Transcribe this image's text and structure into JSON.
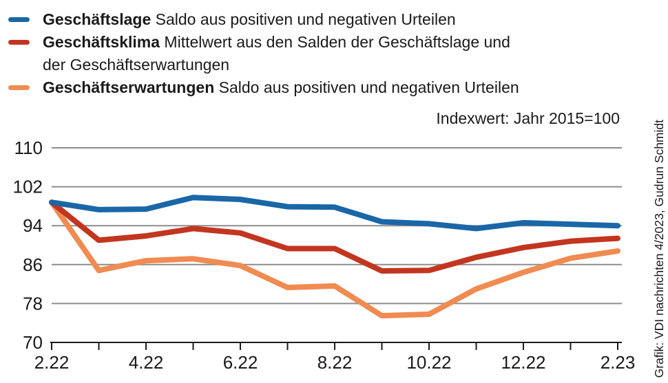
{
  "legend": {
    "items": [
      {
        "term": "Geschäftslage",
        "desc": "Saldo aus positiven und negativen Urteilen",
        "color": "#1a67a8"
      },
      {
        "term": "Geschäftsklima",
        "desc": "Mittelwert aus den Salden der Geschäftslage und",
        "desc_line2": "der Geschäftserwartungen",
        "color": "#c23620"
      },
      {
        "term": "Geschäftserwartungen",
        "desc": "Saldo aus positiven und negativen Urteilen",
        "color": "#f08b52"
      }
    ]
  },
  "annotation": "Indexwert: Jahr 2015=100",
  "credit": "Grafik: VDI nachrichten 4/2023, Gudrun Schmidt",
  "chart_data": {
    "type": "line",
    "months": [
      "2.22",
      "3.22",
      "4.22",
      "5.22",
      "6.22",
      "7.22",
      "8.22",
      "9.22",
      "10.22",
      "11.22",
      "12.22",
      "1.23",
      "2.23"
    ],
    "x_tick_labels": [
      {
        "label": "2.22",
        "month_index": 0
      },
      {
        "label": "4.22",
        "month_index": 2
      },
      {
        "label": "6.22",
        "month_index": 4
      },
      {
        "label": "8.22",
        "month_index": 6
      },
      {
        "label": "10.22",
        "month_index": 8
      },
      {
        "label": "12.22",
        "month_index": 10
      },
      {
        "label": "2.23",
        "month_index": 12
      }
    ],
    "yticks": [
      110,
      102,
      94,
      86,
      78,
      70
    ],
    "ylim": [
      70,
      110
    ],
    "grid": true,
    "legend_position": "top-left",
    "axis_note": "Indexwert: Jahr 2015=100",
    "series": [
      {
        "name": "Geschäftslage",
        "color": "#1a67a8",
        "values": [
          98.8,
          97.3,
          97.4,
          99.8,
          99.4,
          97.9,
          97.8,
          94.8,
          94.4,
          93.4,
          94.6,
          94.3,
          94.0
        ]
      },
      {
        "name": "Geschäftsklima",
        "color": "#c23620",
        "values": [
          98.8,
          91.0,
          91.9,
          93.4,
          92.5,
          89.3,
          89.3,
          84.7,
          84.8,
          87.5,
          89.5,
          90.8,
          91.4
        ]
      },
      {
        "name": "Geschäftserwartungen",
        "color": "#f08b52",
        "values": [
          98.8,
          84.8,
          86.8,
          87.2,
          85.8,
          81.3,
          81.6,
          75.5,
          75.8,
          81.0,
          84.4,
          87.3,
          88.8
        ]
      }
    ]
  }
}
